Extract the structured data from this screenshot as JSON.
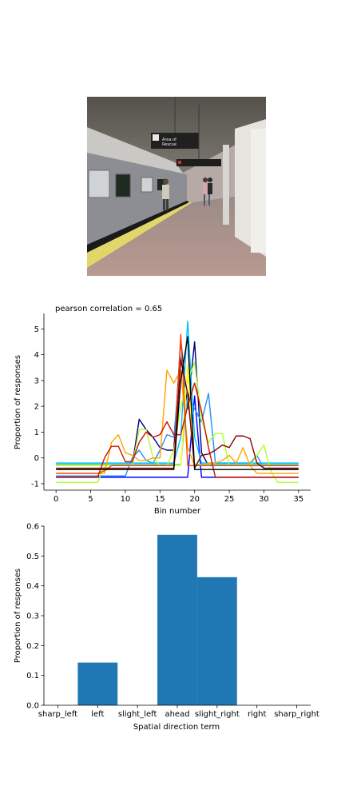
{
  "photo": {
    "scene": "subway platform with train",
    "sign_text": "Area of Rescue Assistance",
    "colors": {
      "ceiling": "#6d6a63",
      "train": "#8a8c91",
      "platform": "#a99088",
      "wall": "#e6e4df",
      "yellow_edge": "#e1d66a"
    }
  },
  "chart_data": [
    {
      "type": "line",
      "title": "pearson correlation = 0.65",
      "xlabel": "Bin number",
      "ylabel": "Proportion of responses",
      "xlim": [
        -1.75,
        36.75
      ],
      "ylim": [
        -1.25,
        5.6
      ],
      "xticks": [
        0,
        5,
        10,
        15,
        20,
        25,
        30,
        35
      ],
      "yticks": [
        -1,
        0,
        1,
        2,
        3,
        4,
        5
      ],
      "x": [
        0,
        1,
        2,
        3,
        4,
        5,
        6,
        7,
        8,
        9,
        10,
        11,
        12,
        13,
        14,
        15,
        16,
        17,
        18,
        19,
        20,
        21,
        22,
        23,
        24,
        25,
        26,
        27,
        28,
        29,
        30,
        31,
        32,
        33,
        34,
        35
      ],
      "series": [
        {
          "color": "#000080",
          "values": [
            -0.3,
            -0.3,
            -0.3,
            -0.3,
            -0.3,
            -0.3,
            -0.3,
            -0.3,
            -0.3,
            -0.3,
            -0.3,
            -0.3,
            1.5,
            1.1,
            0.8,
            0.4,
            0.3,
            0.3,
            4.6,
            1.9,
            4.5,
            0.2,
            -0.3,
            -0.3,
            -0.3,
            -0.3,
            -0.3,
            -0.3,
            -0.3,
            -0.3,
            -0.3,
            -0.3,
            -0.3,
            -0.3,
            -0.3,
            -0.3
          ]
        },
        {
          "color": "#0000ff",
          "values": [
            -0.75,
            -0.75,
            -0.75,
            -0.75,
            -0.75,
            -0.75,
            -0.75,
            -0.75,
            -0.75,
            -0.75,
            -0.75,
            -0.75,
            -0.75,
            -0.75,
            -0.75,
            -0.75,
            -0.75,
            -0.75,
            -0.75,
            -0.75,
            2.4,
            -0.75,
            -0.75,
            -0.75,
            -0.75,
            -0.75,
            -0.75,
            -0.75,
            -0.75,
            -0.75,
            -0.75,
            -0.75,
            -0.75,
            -0.75,
            -0.75,
            -0.75
          ]
        },
        {
          "color": "#1e90ff",
          "values": [
            -0.7,
            -0.7,
            -0.7,
            -0.7,
            -0.7,
            -0.7,
            -0.7,
            -0.7,
            -0.7,
            -0.7,
            -0.7,
            0.0,
            0.3,
            -0.1,
            -0.2,
            0.3,
            0.9,
            0.8,
            3.9,
            2.4,
            1.9,
            1.4,
            2.5,
            -0.2,
            -0.2,
            -0.2,
            -0.2,
            -0.2,
            -0.2,
            0.1,
            -0.4,
            -0.4,
            -0.4,
            -0.4,
            -0.4,
            -0.4
          ]
        },
        {
          "color": "#00bfff",
          "values": [
            -0.2,
            -0.2,
            -0.2,
            -0.2,
            -0.2,
            -0.2,
            -0.2,
            -0.2,
            -0.2,
            -0.2,
            -0.2,
            -0.2,
            -0.2,
            -0.2,
            -0.2,
            -0.2,
            -0.2,
            -0.2,
            0.8,
            5.3,
            0.8,
            -0.2,
            -0.2,
            -0.2,
            -0.2,
            -0.2,
            -0.2,
            -0.2,
            -0.2,
            -0.2,
            -0.2,
            -0.2,
            -0.2,
            -0.2,
            -0.2,
            -0.2
          ]
        },
        {
          "color": "#40e0d0",
          "values": [
            -0.25,
            -0.25,
            -0.25,
            -0.25,
            -0.25,
            -0.25,
            -0.25,
            -0.25,
            -0.25,
            -0.25,
            -0.25,
            -0.25,
            -0.25,
            -0.25,
            -0.25,
            -0.25,
            -0.25,
            -0.25,
            -0.25,
            2.5,
            -0.25,
            -0.25,
            -0.25,
            -0.25,
            -0.25,
            -0.25,
            -0.25,
            -0.25,
            -0.25,
            -0.25,
            -0.25,
            -0.25,
            -0.25,
            -0.25,
            -0.25,
            -0.25
          ]
        },
        {
          "color": "#adff2f",
          "values": [
            -0.95,
            -0.95,
            -0.95,
            -0.95,
            -0.95,
            -0.95,
            -0.95,
            -0.3,
            -0.3,
            -0.3,
            -0.3,
            -0.3,
            1.1,
            1.1,
            0.0,
            -0.3,
            -0.3,
            0.3,
            2.0,
            3.0,
            3.7,
            1.5,
            0.6,
            0.95,
            0.95,
            -0.3,
            -0.3,
            -0.3,
            -0.3,
            0.1,
            0.5,
            -0.5,
            -0.95,
            -0.95,
            -0.95,
            -0.95
          ]
        },
        {
          "color": "#ffff00",
          "values": [
            -0.3,
            -0.3,
            -0.3,
            -0.3,
            -0.3,
            -0.3,
            -0.3,
            -0.3,
            -0.3,
            -0.3,
            -0.3,
            -0.3,
            -0.3,
            -0.3,
            -0.3,
            -0.3,
            -0.3,
            -0.3,
            -0.3,
            3.6,
            -0.3,
            -0.3,
            -0.3,
            -0.3,
            -0.3,
            -0.3,
            -0.3,
            -0.3,
            -0.3,
            -0.3,
            -0.3,
            -0.3,
            -0.3,
            -0.3,
            -0.3,
            -0.3
          ]
        },
        {
          "color": "#ffa500",
          "values": [
            -0.6,
            -0.6,
            -0.6,
            -0.6,
            -0.6,
            -0.6,
            -0.6,
            -0.6,
            0.6,
            0.9,
            0.2,
            0.1,
            -0.1,
            -0.1,
            0.0,
            0.0,
            3.4,
            2.9,
            3.4,
            0.4,
            -0.3,
            -0.3,
            -0.2,
            -0.2,
            -0.1,
            0.1,
            -0.2,
            0.4,
            -0.3,
            -0.6,
            -0.6,
            -0.6,
            -0.6,
            -0.6,
            -0.6,
            -0.6
          ]
        },
        {
          "color": "#ff4500",
          "values": [
            -0.6,
            -0.6,
            -0.6,
            -0.6,
            -0.6,
            -0.6,
            -0.6,
            -0.5,
            -0.3,
            -0.3,
            -0.3,
            -0.3,
            -0.3,
            -0.3,
            -0.3,
            -0.3,
            -0.3,
            -0.3,
            4.8,
            -0.3,
            -0.3,
            -0.3,
            -0.3,
            -0.3,
            -0.3,
            -0.3,
            -0.3,
            -0.3,
            -0.3,
            -0.3,
            -0.3,
            -0.3,
            -0.3,
            -0.3,
            -0.3,
            -0.3
          ]
        },
        {
          "color": "#cc1100",
          "values": [
            -0.75,
            -0.75,
            -0.75,
            -0.75,
            -0.75,
            -0.75,
            -0.75,
            0.0,
            0.45,
            0.45,
            -0.15,
            -0.15,
            0.6,
            1.0,
            0.8,
            0.9,
            1.4,
            0.9,
            0.9,
            2.0,
            2.9,
            1.8,
            0.4,
            -0.75,
            -0.75,
            -0.75,
            -0.75,
            -0.75,
            -0.75,
            -0.75,
            -0.75,
            -0.75,
            -0.75,
            -0.75,
            -0.75,
            -0.75
          ]
        },
        {
          "color": "#8b0000",
          "values": [
            -0.4,
            -0.4,
            -0.4,
            -0.4,
            -0.4,
            -0.4,
            -0.4,
            -0.4,
            -0.4,
            -0.4,
            -0.4,
            -0.4,
            -0.4,
            -0.4,
            -0.4,
            -0.4,
            -0.4,
            -0.4,
            3.8,
            2.5,
            -0.4,
            0.1,
            0.15,
            0.3,
            0.5,
            0.4,
            0.85,
            0.85,
            0.75,
            -0.2,
            -0.4,
            -0.4,
            -0.4,
            -0.4,
            -0.4,
            -0.4
          ]
        },
        {
          "color": "#000000",
          "values": [
            -0.45,
            -0.45,
            -0.45,
            -0.45,
            -0.45,
            -0.45,
            -0.45,
            -0.45,
            -0.45,
            -0.45,
            -0.45,
            -0.45,
            -0.45,
            -0.45,
            -0.45,
            -0.45,
            -0.45,
            -0.45,
            3.0,
            4.7,
            -0.45,
            -0.45,
            -0.45,
            -0.45,
            -0.45,
            -0.45,
            -0.45,
            -0.45,
            -0.45,
            -0.45,
            -0.45,
            -0.45,
            -0.45,
            -0.45,
            -0.45,
            -0.45
          ]
        }
      ]
    },
    {
      "type": "bar",
      "title": "",
      "xlabel": "Spatial direction term",
      "ylabel": "Proportion of responses",
      "ylim": [
        0,
        0.6
      ],
      "yticks": [
        0.0,
        0.1,
        0.2,
        0.3,
        0.4,
        0.5,
        0.6
      ],
      "categories": [
        "sharp_left",
        "left",
        "slight_left",
        "ahead",
        "slight_right",
        "right",
        "sharp_right"
      ],
      "values": [
        0,
        0.143,
        0,
        0.571,
        0.429,
        0,
        0
      ],
      "color": "#1f77b4"
    }
  ]
}
